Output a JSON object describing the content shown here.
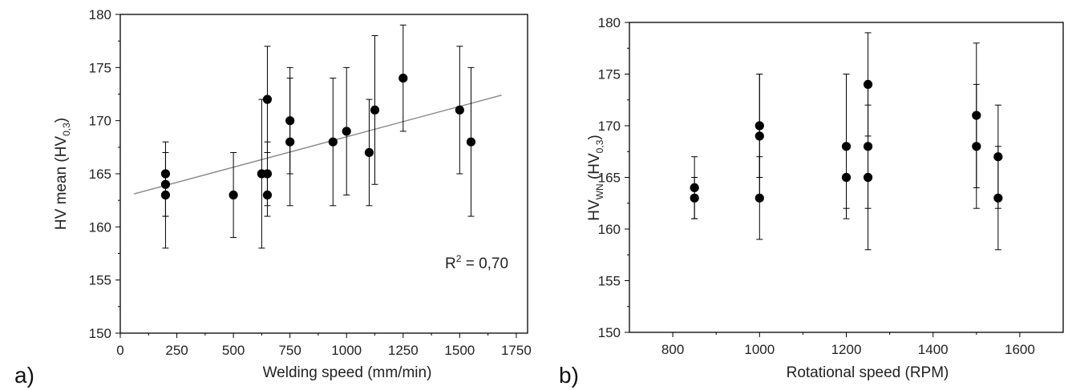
{
  "chart_data": [
    {
      "type": "scatter",
      "panel_label": "a)",
      "title": "",
      "xlabel": "Welding speed (mm/min)",
      "ylabel": "HV mean (HV0,3)",
      "ylabel_main": "HV mean (HV",
      "ylabel_sub": "0,3",
      "ylabel_close": ")",
      "xlim": [
        0,
        1800
      ],
      "ylim": [
        150,
        180
      ],
      "xticks": [
        0,
        250,
        500,
        750,
        1000,
        1250,
        1500,
        1750
      ],
      "yticks": [
        150,
        155,
        160,
        165,
        170,
        175,
        180
      ],
      "annotation": "R² = 0,70",
      "annotation_parts": {
        "prefix": "R",
        "sup": "2",
        "suffix": " = 0,70"
      },
      "trendline": {
        "x": [
          60,
          1685
        ],
        "y": [
          163.1,
          172.4
        ],
        "color": "#888888"
      },
      "points": [
        {
          "x": 200,
          "y": 165,
          "err_lo": 161,
          "err_hi": 168
        },
        {
          "x": 200,
          "y": 164,
          "err_lo": 158,
          "err_hi": 167
        },
        {
          "x": 200,
          "y": 163,
          "err_lo": 161,
          "err_hi": 165
        },
        {
          "x": 500,
          "y": 163,
          "err_lo": 159,
          "err_hi": 167
        },
        {
          "x": 625,
          "y": 165,
          "err_lo": 158,
          "err_hi": 172
        },
        {
          "x": 650,
          "y": 172,
          "err_lo": 167,
          "err_hi": 177
        },
        {
          "x": 650,
          "y": 165,
          "err_lo": 162,
          "err_hi": 168
        },
        {
          "x": 650,
          "y": 163,
          "err_lo": 161,
          "err_hi": 165
        },
        {
          "x": 750,
          "y": 170,
          "err_lo": 165,
          "err_hi": 175
        },
        {
          "x": 750,
          "y": 168,
          "err_lo": 162,
          "err_hi": 174
        },
        {
          "x": 940,
          "y": 168,
          "err_lo": 162,
          "err_hi": 174
        },
        {
          "x": 1000,
          "y": 169,
          "err_lo": 163,
          "err_hi": 175
        },
        {
          "x": 1100,
          "y": 167,
          "err_lo": 162,
          "err_hi": 172
        },
        {
          "x": 1125,
          "y": 171,
          "err_lo": 164,
          "err_hi": 178
        },
        {
          "x": 1250,
          "y": 174,
          "err_lo": 169,
          "err_hi": 179
        },
        {
          "x": 1500,
          "y": 171,
          "err_lo": 165,
          "err_hi": 177
        },
        {
          "x": 1550,
          "y": 168,
          "err_lo": 161,
          "err_hi": 175
        }
      ]
    },
    {
      "type": "scatter",
      "panel_label": "b)",
      "title": "",
      "xlabel": "Rotational speed (RPM)",
      "ylabel": "HVWN (HV0,3)",
      "ylabel_main": "HV",
      "ylabel_sub1": "WN",
      "ylabel_mid": " (HV",
      "ylabel_sub2": "0,3",
      "ylabel_close": ")",
      "xlim": [
        700,
        1700
      ],
      "ylim": [
        150,
        180
      ],
      "xticks": [
        800,
        1000,
        1200,
        1400,
        1600
      ],
      "yticks": [
        150,
        155,
        160,
        165,
        170,
        175,
        180
      ],
      "points": [
        {
          "x": 850,
          "y": 164,
          "err_lo": 161,
          "err_hi": 167
        },
        {
          "x": 850,
          "y": 163,
          "err_lo": 161,
          "err_hi": 165
        },
        {
          "x": 1000,
          "y": 170,
          "err_lo": 165,
          "err_hi": 175
        },
        {
          "x": 1000,
          "y": 169,
          "err_lo": 163,
          "err_hi": 175
        },
        {
          "x": 1000,
          "y": 163,
          "err_lo": 159,
          "err_hi": 167
        },
        {
          "x": 1200,
          "y": 168,
          "err_lo": 161,
          "err_hi": 175
        },
        {
          "x": 1200,
          "y": 165,
          "err_lo": 162,
          "err_hi": 168
        },
        {
          "x": 1250,
          "y": 174,
          "err_lo": 169,
          "err_hi": 179
        },
        {
          "x": 1250,
          "y": 168,
          "err_lo": 162,
          "err_hi": 174
        },
        {
          "x": 1250,
          "y": 165,
          "err_lo": 158,
          "err_hi": 172
        },
        {
          "x": 1500,
          "y": 171,
          "err_lo": 164,
          "err_hi": 178
        },
        {
          "x": 1500,
          "y": 168,
          "err_lo": 162,
          "err_hi": 174
        },
        {
          "x": 1550,
          "y": 167,
          "err_lo": 162,
          "err_hi": 172
        },
        {
          "x": 1550,
          "y": 163,
          "err_lo": 158,
          "err_hi": 168
        }
      ]
    }
  ]
}
